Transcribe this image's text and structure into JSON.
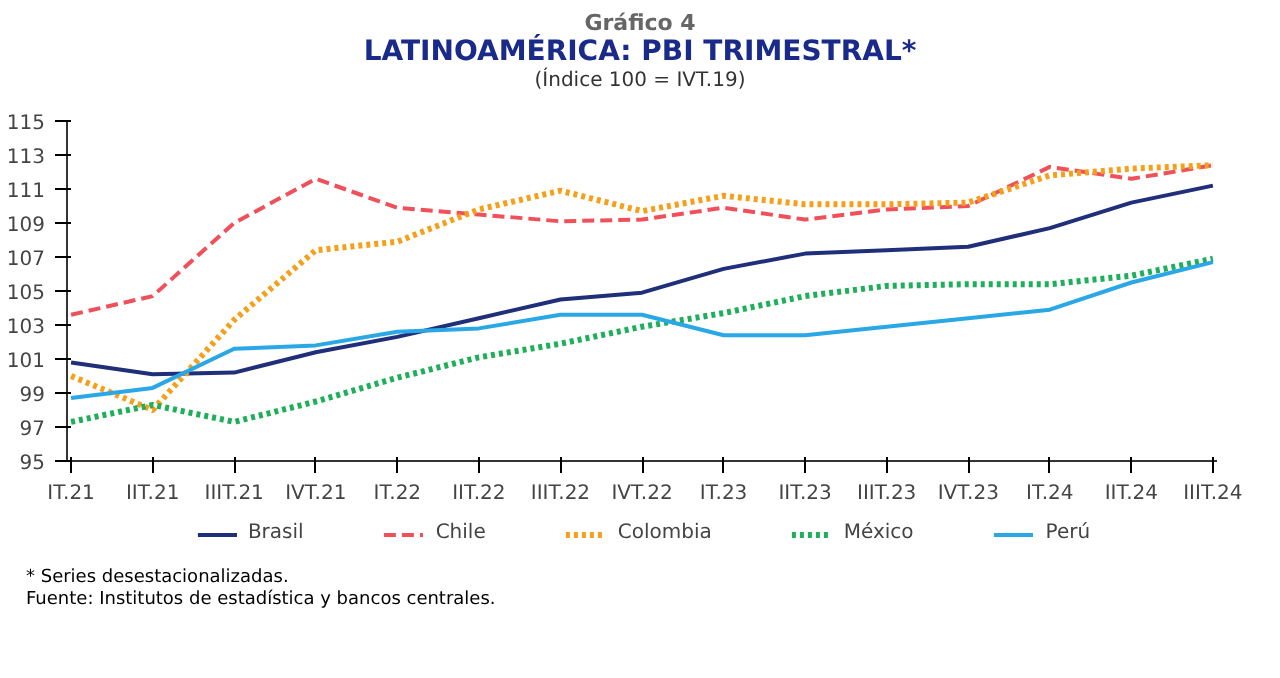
{
  "chart_data": {
    "type": "line",
    "title": "LATINOAMÉRICA: PBI TRIMESTRAL*",
    "subtitle": "(Índice 100 = IVT.19)",
    "annotations": [
      "Gráfico 4",
      "* Series desestacionalizadas.",
      "Fuente: Institutos de estadística y bancos centrales."
    ],
    "categories": [
      "IT.21",
      "IIT.21",
      "IIIT.21",
      "IVT.21",
      "IT.22",
      "IIT.22",
      "IIIT.22",
      "IVT.22",
      "IT.23",
      "IIT.23",
      "IIIT.23",
      "IVT.23",
      "IT.24",
      "IIT.24",
      "IIIT.24"
    ],
    "ylim": [
      95,
      115
    ],
    "yticks": [
      95,
      97,
      99,
      101,
      103,
      105,
      107,
      109,
      111,
      113,
      115
    ],
    "grid": false,
    "legend": "bottom",
    "series": [
      {
        "name": "Brasil",
        "color": "#1f2f7a",
        "line_style": "solid",
        "values": [
          100.8,
          100.1,
          100.2,
          101.4,
          102.3,
          103.4,
          104.5,
          104.9,
          106.3,
          107.2,
          107.4,
          107.6,
          108.7,
          110.2,
          111.2
        ]
      },
      {
        "name": "Chile",
        "color": "#f0505a",
        "line_style": "dashed",
        "values": [
          103.6,
          104.7,
          109.0,
          111.6,
          109.9,
          109.5,
          109.1,
          109.2,
          109.9,
          109.2,
          109.8,
          110.0,
          112.3,
          111.6,
          112.4
        ]
      },
      {
        "name": "Colombia",
        "color": "#f5a01a",
        "line_style": "dotted",
        "values": [
          100.0,
          98.0,
          103.3,
          107.4,
          107.9,
          109.8,
          110.9,
          109.7,
          110.6,
          110.1,
          110.1,
          110.2,
          111.8,
          112.2,
          112.4
        ]
      },
      {
        "name": "México",
        "color": "#1fae5a",
        "line_style": "dotted",
        "values": [
          97.3,
          98.3,
          97.3,
          98.5,
          99.9,
          101.1,
          101.9,
          102.9,
          103.7,
          104.7,
          105.3,
          105.4,
          105.4,
          105.9,
          106.9
        ]
      },
      {
        "name": "Perú",
        "color": "#2aa8e6",
        "line_style": "solid",
        "values": [
          98.7,
          99.3,
          101.6,
          101.8,
          102.6,
          102.8,
          103.6,
          103.6,
          102.4,
          102.4,
          102.9,
          103.4,
          103.9,
          105.5,
          106.7
        ]
      }
    ]
  }
}
